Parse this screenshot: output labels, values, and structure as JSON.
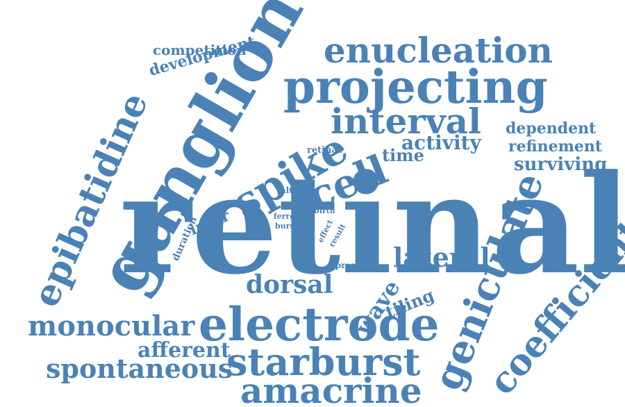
{
  "word_color": "#4a82b6",
  "background": "#ffffff",
  "words": {
    "retinal": "retinal",
    "ganglion": "ganglion",
    "projecting": "projecting",
    "enucleation": "enucleation",
    "electrode": "electrode",
    "starburst": "starburst",
    "amacrine": "amacrine",
    "geniculate": "geniculate",
    "coefficient": "coefficient",
    "epibatidine": "epibatidine",
    "spike": "spike",
    "cell": "cell",
    "interval": "interval",
    "monocular": "monocular",
    "spontaneous": "spontaneous",
    "afferent": "afferent",
    "development": "development",
    "competition": "competition",
    "activity": "activity",
    "dependent": "dependent",
    "refinement": "refinement",
    "surviving": "surviving",
    "lateral": "lateral",
    "dorsal": "dorsal",
    "wave": "wave",
    "tiling": "tiling",
    "time": "time",
    "inter": "inter",
    "duration": "duration",
    "retinae": "retinae",
    "alter": "alter",
    "ferret": "ferret",
    "burst": "burst",
    "birth": "birth",
    "effect": "effect",
    "result": "result",
    "spread": "spread"
  }
}
